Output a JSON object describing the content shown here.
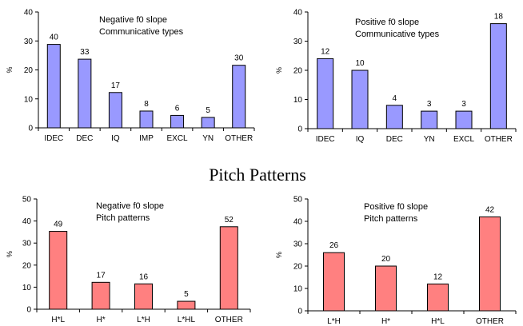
{
  "section_title": "Pitch Patterns",
  "colors": {
    "blue_fill": "#9999ff",
    "red_fill": "#ff8080",
    "bar_stroke": "#000000"
  },
  "chart_data": [
    {
      "type": "bar",
      "annotation": [
        "Negative f0 slope",
        "Communicative types"
      ],
      "ylabel": "%",
      "ylim": [
        0,
        40
      ],
      "yticks": [
        0,
        10,
        20,
        30,
        40
      ],
      "grid": false,
      "categories": [
        "IDEC",
        "DEC",
        "IQ",
        "IMP",
        "EXCL",
        "YN",
        "OTHER"
      ],
      "values": [
        28.8,
        23.7,
        12.2,
        5.8,
        4.3,
        3.6,
        21.6
      ],
      "labels": [
        "40",
        "33",
        "17",
        "8",
        "6",
        "5",
        "30"
      ],
      "color": "blue_fill"
    },
    {
      "type": "bar",
      "annotation": [
        "Positive f0 slope",
        "Communicative types"
      ],
      "ylabel": "%",
      "ylim": [
        0,
        40
      ],
      "yticks": [
        0,
        10,
        20,
        30,
        40
      ],
      "grid": false,
      "categories": [
        "IDEC",
        "IQ",
        "DEC",
        "YN",
        "EXCL",
        "OTHER"
      ],
      "values": [
        24,
        20,
        8,
        6,
        6,
        36
      ],
      "labels": [
        "12",
        "10",
        "4",
        "3",
        "3",
        "18"
      ],
      "color": "blue_fill"
    },
    {
      "type": "bar",
      "annotation": [
        "Negative f0 slope",
        "Pitch patterns"
      ],
      "ylabel": "%",
      "ylim": [
        0,
        50
      ],
      "yticks": [
        0,
        10,
        20,
        30,
        40,
        50
      ],
      "grid": false,
      "categories": [
        "H*L",
        "H*",
        "L*H",
        "L*HL",
        "OTHER"
      ],
      "values": [
        35.3,
        12.2,
        11.5,
        3.6,
        37.4
      ],
      "labels": [
        "49",
        "17",
        "16",
        "5",
        "52"
      ],
      "color": "red_fill"
    },
    {
      "type": "bar",
      "annotation": [
        "Positive f0 slope",
        "Pitch patterns"
      ],
      "ylabel": "%",
      "ylim": [
        0,
        50
      ],
      "yticks": [
        0,
        10,
        20,
        30,
        40,
        50
      ],
      "grid": false,
      "categories": [
        "L*H",
        "H*",
        "H*L",
        "OTHER"
      ],
      "values": [
        26,
        20,
        12,
        42
      ],
      "labels": [
        "26",
        "20",
        "12",
        "42"
      ],
      "color": "red_fill"
    }
  ]
}
